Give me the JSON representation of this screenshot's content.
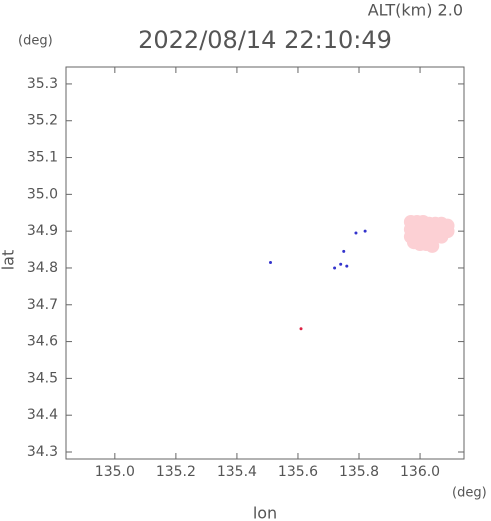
{
  "chart_data": {
    "type": "scatter",
    "title": "2022/08/14 22:10:49",
    "annotation": "ALT(km) 2.0",
    "xlabel": "lon",
    "ylabel": "lat",
    "xunit": "(deg)",
    "yunit": "(deg)",
    "xlim": [
      134.84,
      136.144
    ],
    "ylim": [
      34.281,
      35.346
    ],
    "xticks": [
      {
        "value": 135.0,
        "label": "135.0"
      },
      135.2,
      135.4,
      135.6,
      135.8,
      {
        "value": 136.0,
        "label": "136.0"
      }
    ],
    "yticks": [
      34.3,
      34.4,
      34.5,
      34.6,
      34.7,
      34.8,
      34.9,
      {
        "value": 35.0,
        "label": "35.0"
      },
      35.1,
      35.2,
      35.3
    ],
    "x": [
      135.97,
      135.99,
      136.01,
      136.03,
      136.05,
      136.07,
      136.09,
      135.97,
      135.99,
      136.01,
      136.03,
      136.05,
      136.07,
      136.09,
      135.97,
      135.99,
      136.01,
      136.03,
      136.05,
      136.07,
      135.98,
      136.0,
      136.02,
      136.04,
      135.51,
      135.74,
      135.76,
      135.75,
      135.79,
      135.82,
      135.61,
      135.72
    ],
    "values": [
      34.925,
      34.925,
      34.925,
      34.92,
      34.92,
      34.92,
      34.915,
      34.905,
      34.905,
      34.905,
      34.905,
      34.905,
      34.905,
      34.9,
      34.885,
      34.885,
      34.885,
      34.885,
      34.885,
      34.885,
      34.87,
      34.865,
      34.865,
      34.86,
      34.815,
      34.81,
      34.805,
      34.845,
      34.895,
      34.9,
      34.635,
      34.8
    ],
    "colors": [
      "#fcd0d4",
      "#fcd0d4",
      "#fcd0d4",
      "#fcd0d4",
      "#fcd0d4",
      "#fcd0d4",
      "#fcd0d4",
      "#fcd0d4",
      "#fcd0d4",
      "#fcd0d4",
      "#fcd0d4",
      "#fcd0d4",
      "#fcd0d4",
      "#fcd0d4",
      "#fcd0d4",
      "#fcd0d4",
      "#fcd0d4",
      "#fcd0d4",
      "#fcd0d4",
      "#fcd0d4",
      "#fcd0d4",
      "#fcd0d4",
      "#fcd0d4",
      "#fcd0d4",
      "#3333cc",
      "#3333cc",
      "#3333cc",
      "#3333cc",
      "#3333cc",
      "#3333cc",
      "#dd2244",
      "#3333cc"
    ]
  }
}
